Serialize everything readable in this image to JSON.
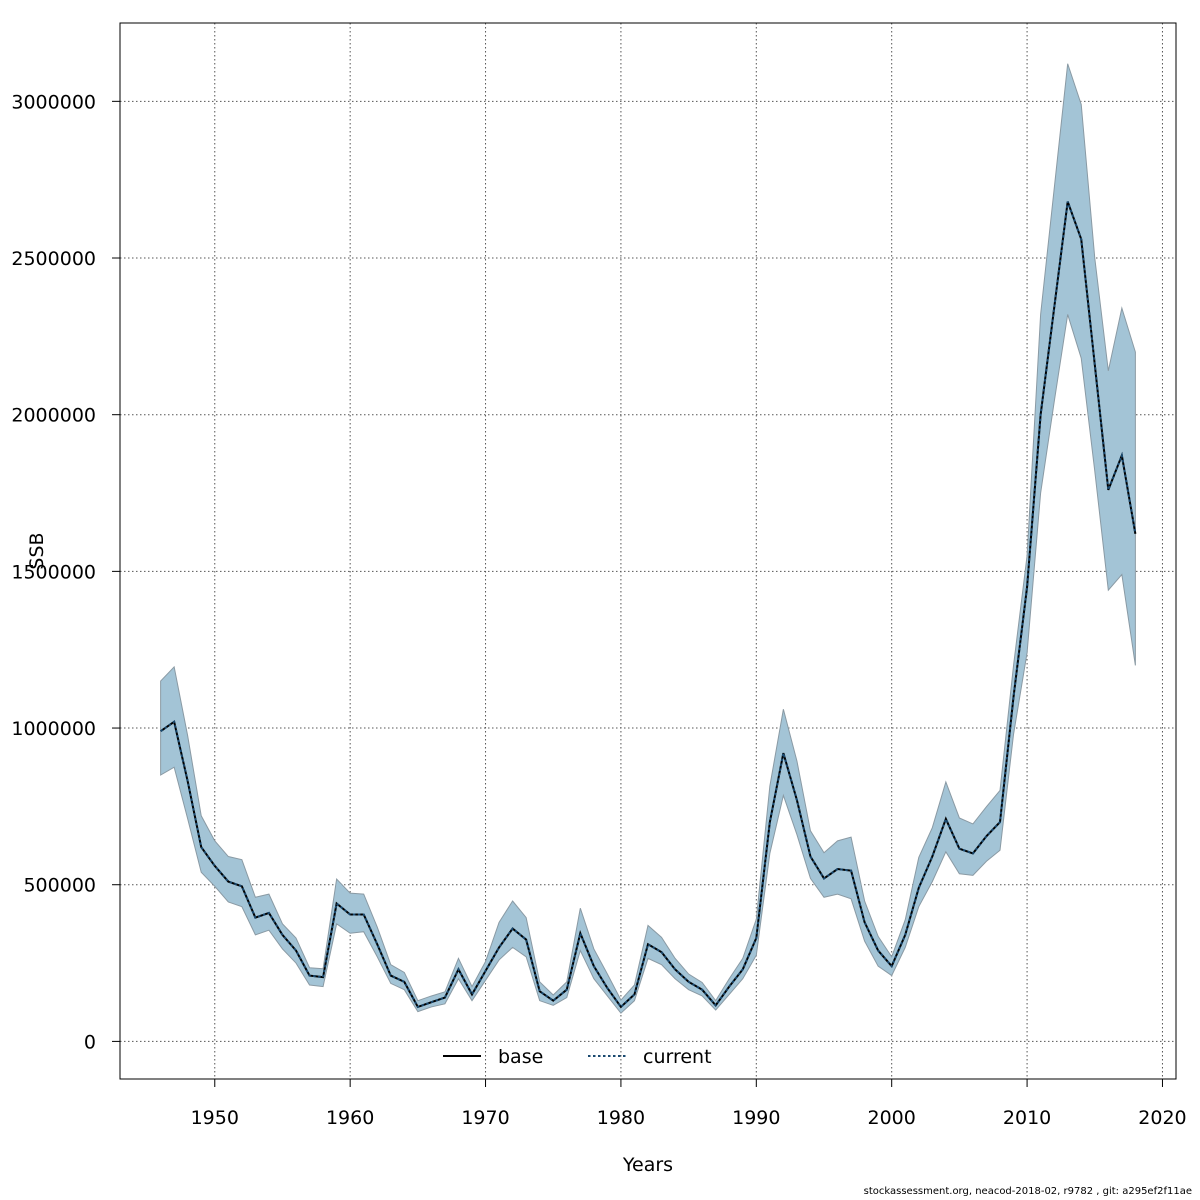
{
  "chart_data": {
    "type": "area",
    "xlabel": "Years",
    "ylabel": "SSB",
    "xlim": [
      1943,
      2021
    ],
    "ylim": [
      -120000,
      3250000
    ],
    "x_ticks": [
      "1950",
      "1960",
      "1970",
      "1980",
      "1990",
      "2000",
      "2010",
      "2020"
    ],
    "y_ticks": [
      "0",
      "500000",
      "1000000",
      "1500000",
      "2000000",
      "2500000",
      "3000000"
    ],
    "grid": true,
    "legend": {
      "placement": "bottom-center",
      "entries": [
        "base",
        "current"
      ]
    },
    "band_color": "#a3c4d6",
    "band_edge_color": "#8a9aa4",
    "current_color": "#1a4a70",
    "x": [
      1946,
      1947,
      1948,
      1949,
      1950,
      1951,
      1952,
      1953,
      1954,
      1955,
      1956,
      1957,
      1958,
      1959,
      1960,
      1961,
      1962,
      1963,
      1964,
      1965,
      1966,
      1967,
      1968,
      1969,
      1970,
      1971,
      1972,
      1973,
      1974,
      1975,
      1976,
      1977,
      1978,
      1979,
      1980,
      1981,
      1982,
      1983,
      1984,
      1985,
      1986,
      1987,
      1988,
      1989,
      1990,
      1991,
      1992,
      1993,
      1994,
      1995,
      1996,
      1997,
      1998,
      1999,
      2000,
      2001,
      2002,
      2003,
      2004,
      2005,
      2006,
      2007,
      2008,
      2009,
      2010,
      2011,
      2012,
      2013,
      2014,
      2015,
      2016,
      2017,
      2018
    ],
    "series": [
      {
        "name": "base",
        "values": [
          990000,
          1020000,
          830000,
          620000,
          560000,
          510000,
          495000,
          395000,
          410000,
          340000,
          290000,
          210000,
          205000,
          440000,
          405000,
          405000,
          310000,
          210000,
          190000,
          110000,
          125000,
          140000,
          230000,
          150000,
          225000,
          300000,
          360000,
          325000,
          160000,
          130000,
          165000,
          345000,
          240000,
          170000,
          110000,
          150000,
          310000,
          285000,
          230000,
          190000,
          165000,
          115000,
          175000,
          230000,
          330000,
          700000,
          920000,
          770000,
          590000,
          520000,
          550000,
          545000,
          380000,
          290000,
          240000,
          340000,
          490000,
          590000,
          710000,
          615000,
          600000,
          655000,
          700000,
          1100000,
          1450000,
          2000000,
          2340000,
          2680000,
          2560000,
          2160000,
          1760000,
          1870000,
          1620000
        ]
      },
      {
        "name": "current",
        "values": [
          990000,
          1020000,
          830000,
          620000,
          560000,
          510000,
          495000,
          395000,
          410000,
          340000,
          290000,
          210000,
          205000,
          440000,
          405000,
          405000,
          310000,
          210000,
          190000,
          110000,
          125000,
          140000,
          230000,
          150000,
          225000,
          300000,
          360000,
          325000,
          160000,
          130000,
          165000,
          345000,
          240000,
          170000,
          110000,
          150000,
          310000,
          285000,
          230000,
          190000,
          165000,
          115000,
          175000,
          230000,
          330000,
          700000,
          920000,
          770000,
          590000,
          520000,
          550000,
          545000,
          380000,
          290000,
          240000,
          340000,
          490000,
          590000,
          710000,
          615000,
          600000,
          655000,
          700000,
          1100000,
          1450000,
          2000000,
          2340000,
          2680000,
          2560000,
          2160000,
          1760000,
          1870000,
          1620000
        ]
      }
    ],
    "band_lower": [
      850000,
      875000,
      710000,
      540000,
      495000,
      445000,
      430000,
      340000,
      355000,
      295000,
      250000,
      180000,
      175000,
      375000,
      345000,
      350000,
      270000,
      185000,
      165000,
      95000,
      110000,
      120000,
      200000,
      130000,
      195000,
      260000,
      300000,
      270000,
      130000,
      115000,
      140000,
      290000,
      200000,
      145000,
      90000,
      130000,
      265000,
      245000,
      200000,
      165000,
      145000,
      100000,
      150000,
      200000,
      275000,
      600000,
      785000,
      660000,
      520000,
      460000,
      470000,
      455000,
      320000,
      240000,
      210000,
      300000,
      430000,
      510000,
      605000,
      535000,
      530000,
      575000,
      610000,
      980000,
      1240000,
      1750000,
      2040000,
      2320000,
      2180000,
      1820000,
      1440000,
      1490000,
      1200000
    ],
    "band_upper": [
      1150000,
      1195000,
      975000,
      720000,
      640000,
      590000,
      580000,
      460000,
      470000,
      375000,
      330000,
      235000,
      232000,
      518000,
      473000,
      470000,
      365000,
      245000,
      220000,
      130000,
      145000,
      158000,
      265000,
      175000,
      255000,
      380000,
      448000,
      395000,
      190000,
      148000,
      190000,
      425000,
      295000,
      215000,
      132000,
      180000,
      370000,
      332000,
      265000,
      215000,
      188000,
      130000,
      200000,
      265000,
      390000,
      815000,
      1060000,
      895000,
      672000,
      602000,
      640000,
      652000,
      448000,
      335000,
      270000,
      388000,
      587000,
      682000,
      828000,
      713000,
      694000,
      749000,
      801000,
      1200000,
      1550000,
      2320000,
      2720000,
      3120000,
      2990000,
      2500000,
      2140000,
      2340000,
      2200000
    ]
  },
  "footer": "stockassessment.org, neacod-2018-02, r9782 , git: a295ef2f11ae"
}
